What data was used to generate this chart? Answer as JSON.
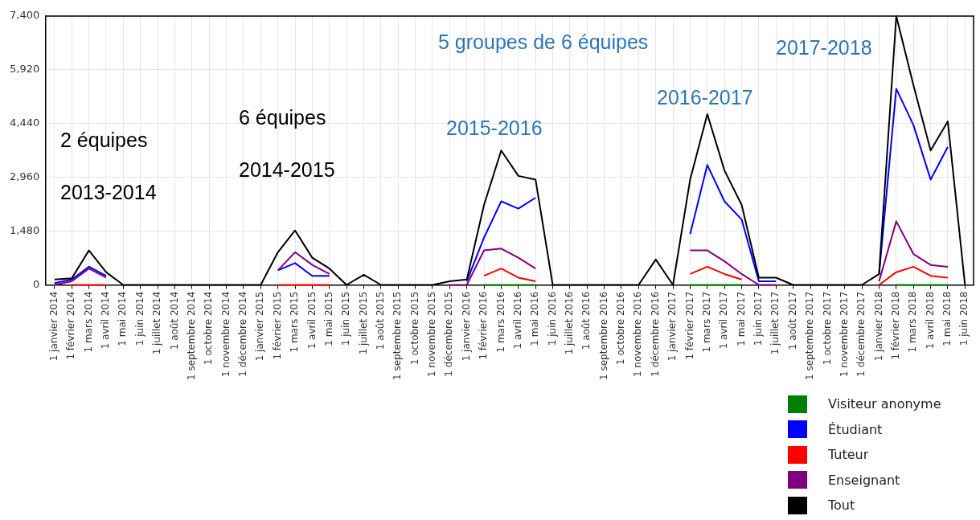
{
  "chart_data": {
    "type": "line",
    "categories": [
      "1 janvier 2014",
      "1 février 2014",
      "1 mars 2014",
      "1 avril 2014",
      "1 mai 2014",
      "1 juin 2014",
      "1 juillet 2014",
      "1 août 2014",
      "1 septembre 2014",
      "1 octobre 2014",
      "1 novembre 2014",
      "1 décembre 2014",
      "1 janvier 2015",
      "1 février 2015",
      "1 mars 2015",
      "1 avril 2015",
      "1 mai 2015",
      "1 juin 2015",
      "1 juillet 2015",
      "1 août 2015",
      "1 septembre 2015",
      "1 octobre 2015",
      "1 novembre 2015",
      "1 décembre 2015",
      "1 janvier 2016",
      "1 février 2016",
      "1 mars 2016",
      "1 avril 2016",
      "1 mai 2016",
      "1 juin 2016",
      "1 juillet 2016",
      "1 août 2016",
      "1 septembre 2016",
      "1 octobre 2016",
      "1 novembre 2016",
      "1 décembre 2016",
      "1 janvier 2017",
      "1 février 2017",
      "1 mars 2017",
      "1 avril 2017",
      "1 mai 2017",
      "1 juin 2017",
      "1 juillet 2017",
      "1 août 2017",
      "1 septembre 2017",
      "1 octobre 2017",
      "1 novembre 2017",
      "1 décembre 2017",
      "1 janvier 2018",
      "1 février 2018",
      "1 mars 2018",
      "1 avril 2018",
      "1 mai 2018",
      "1 juin 2018"
    ],
    "series": [
      {
        "name": "Visiteur anonyme",
        "color": "#008000",
        "values": [
          null,
          null,
          null,
          null,
          null,
          null,
          null,
          null,
          null,
          null,
          null,
          null,
          null,
          null,
          null,
          null,
          null,
          null,
          null,
          null,
          null,
          null,
          null,
          null,
          null,
          0,
          0,
          0,
          0,
          null,
          null,
          null,
          null,
          null,
          null,
          null,
          null,
          0,
          0,
          0,
          0,
          null,
          null,
          null,
          null,
          null,
          null,
          null,
          null,
          0,
          0,
          0,
          0,
          null
        ]
      },
      {
        "name": "Étudiant",
        "color": "#0000ff",
        "values": [
          50,
          150,
          500,
          250,
          null,
          null,
          null,
          null,
          null,
          null,
          null,
          null,
          null,
          400,
          600,
          250,
          250,
          null,
          null,
          null,
          null,
          null,
          null,
          null,
          100,
          1300,
          2300,
          2100,
          2400,
          null,
          null,
          null,
          null,
          null,
          null,
          null,
          null,
          1400,
          3300,
          2300,
          1800,
          100,
          100,
          null,
          null,
          null,
          null,
          null,
          300,
          5400,
          4400,
          2900,
          3800,
          null
        ]
      },
      {
        "name": "Tuteur",
        "color": "#ff0000",
        "values": [
          null,
          0,
          0,
          0,
          null,
          null,
          null,
          null,
          null,
          null,
          null,
          null,
          null,
          0,
          0,
          0,
          0,
          null,
          null,
          null,
          null,
          null,
          null,
          null,
          null,
          250,
          450,
          200,
          100,
          null,
          null,
          null,
          null,
          null,
          null,
          null,
          null,
          300,
          500,
          300,
          150,
          null,
          null,
          null,
          null,
          null,
          null,
          null,
          0,
          350,
          500,
          250,
          200,
          null
        ]
      },
      {
        "name": "Enseignant",
        "color": "#800080",
        "values": [
          0,
          100,
          450,
          200,
          null,
          null,
          null,
          null,
          null,
          null,
          null,
          null,
          null,
          400,
          900,
          550,
          300,
          null,
          null,
          null,
          null,
          null,
          null,
          0,
          0,
          950,
          1000,
          750,
          450,
          null,
          null,
          null,
          null,
          null,
          null,
          null,
          null,
          950,
          950,
          650,
          300,
          0,
          0,
          null,
          null,
          null,
          null,
          null,
          100,
          1750,
          850,
          550,
          500,
          null
        ]
      },
      {
        "name": "Tout",
        "color": "#000000",
        "values": [
          150,
          180,
          950,
          350,
          0,
          0,
          0,
          0,
          0,
          0,
          0,
          0,
          0,
          900,
          1500,
          750,
          450,
          0,
          280,
          0,
          0,
          0,
          0,
          100,
          150,
          2200,
          3700,
          3000,
          2900,
          0,
          0,
          0,
          0,
          0,
          0,
          700,
          0,
          2900,
          4700,
          3150,
          2200,
          200,
          200,
          0,
          0,
          0,
          0,
          0,
          300,
          7400,
          5500,
          3700,
          4500,
          0
        ]
      }
    ],
    "ylim": [
      0,
      7400
    ],
    "yticks": [
      0,
      {
        "value": 1480,
        "label": "1,480"
      },
      {
        "value": 2960,
        "label": "2,960"
      },
      {
        "value": 4440,
        "label": "4,440"
      },
      {
        "value": 5920,
        "label": "5,920"
      },
      {
        "value": 7400,
        "label": "7,400"
      }
    ],
    "grid": true,
    "legend": "bottom right",
    "marker": "none",
    "line_style": "solid",
    "annotations": [
      "2 équipes",
      "2013-2014",
      "6 équipes",
      "2014-2015",
      "5 groupes de 6 équipes",
      "2015-2016",
      "2016-2017",
      "2017-2018"
    ]
  }
}
